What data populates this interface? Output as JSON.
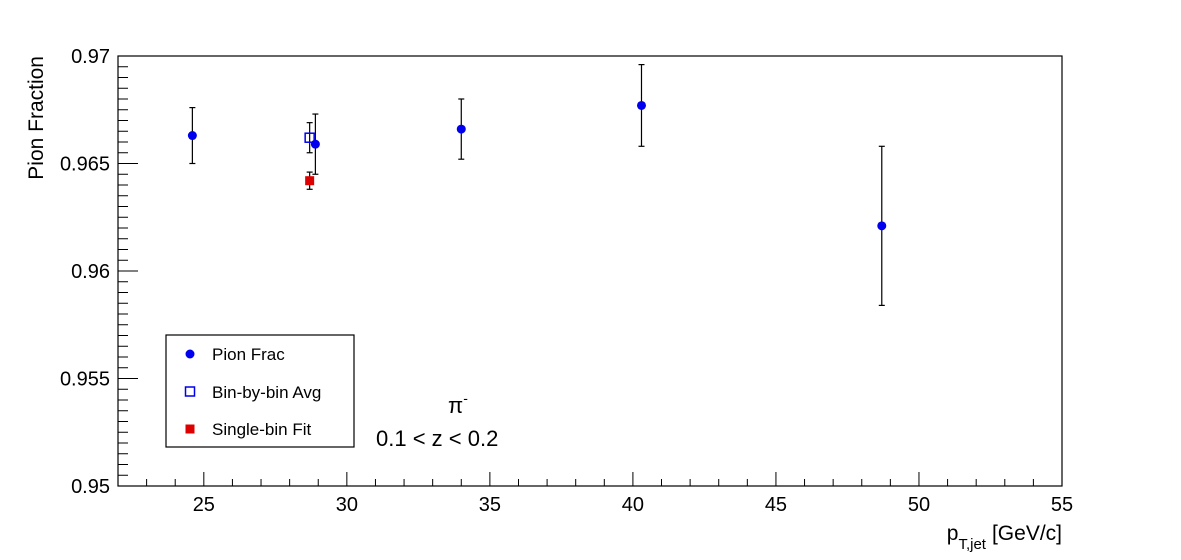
{
  "chart_data": {
    "type": "scatter",
    "title": "",
    "xlabel_main": "p",
    "xlabel_sub": "T,jet",
    "xlabel_unit": "[GeV/c]",
    "ylabel": "Pion Fraction",
    "xlim": [
      22,
      55
    ],
    "ylim": [
      0.95,
      0.97
    ],
    "x_ticks": [
      25,
      30,
      35,
      40,
      45,
      50,
      55
    ],
    "x_tick_labels": [
      "25",
      "30",
      "35",
      "40",
      "45",
      "50",
      "55"
    ],
    "y_ticks": [
      0.95,
      0.955,
      0.96,
      0.965,
      0.97
    ],
    "y_tick_labels": [
      "0.95",
      "0.955",
      "0.96",
      "0.965",
      "0.97"
    ],
    "grid": false,
    "legend_position": "bottom-left",
    "series": [
      {
        "name": "Pion Frac",
        "marker": "filled-circle",
        "color": "#0000ee",
        "x": [
          24.6,
          28.9,
          34.0,
          40.3,
          48.7
        ],
        "y": [
          0.9663,
          0.9659,
          0.9666,
          0.9677,
          0.9621
        ],
        "err": [
          0.0013,
          0.0014,
          0.0014,
          0.0019,
          0.0037
        ]
      },
      {
        "name": "Bin-by-bin Avg",
        "marker": "open-square",
        "color": "#0000ee",
        "x": [
          28.7
        ],
        "y": [
          0.9662
        ],
        "err": [
          0.0007
        ]
      },
      {
        "name": "Single-bin Fit",
        "marker": "filled-square",
        "color": "#dd0000",
        "x": [
          28.7
        ],
        "y": [
          0.9642
        ],
        "err": [
          0.0004
        ]
      }
    ],
    "annotations": {
      "particle_base": "π",
      "particle_sup": "-",
      "z_range": "0.1 < z < 0.2"
    }
  }
}
